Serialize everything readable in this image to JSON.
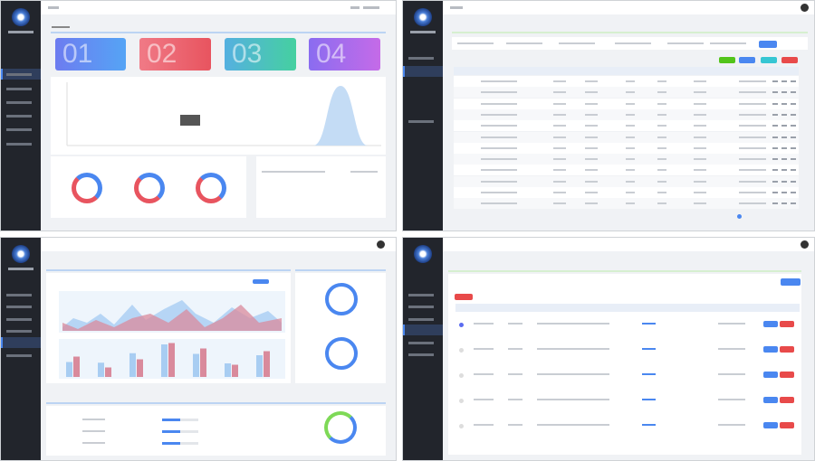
{
  "dashboard": {
    "stat_cards": [
      {
        "number": "01",
        "color_from": "#6d7cf0",
        "color_to": "#55a4f5"
      },
      {
        "number": "02",
        "color_from": "#f07a86",
        "color_to": "#e8545f"
      },
      {
        "number": "03",
        "color_from": "#55b0e0",
        "color_to": "#45d0a0"
      },
      {
        "number": "04",
        "color_from": "#8a6cf0",
        "color_to": "#c56be8"
      }
    ]
  },
  "colors": {
    "sidebar": "#22252c",
    "accent": "#4a87f0",
    "danger": "#e84a4a",
    "success": "#52c41a",
    "info": "#36c6d3",
    "area_blue": "#a8cdf2",
    "area_red": "#d98a9c"
  },
  "icons": [
    "logo-icon",
    "avatar-icon"
  ]
}
